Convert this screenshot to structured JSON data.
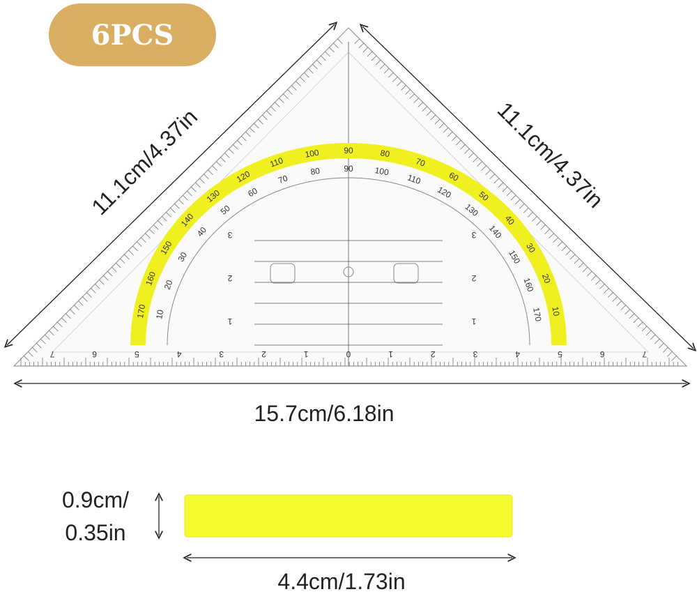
{
  "badge": {
    "label": "6PCS",
    "color": "#d9ae62"
  },
  "dimensions": {
    "left_side": "11.1cm/4.37in",
    "right_side": "11.1cm/4.37in",
    "base": "15.7cm/6.18in",
    "bar_height_line1": "0.9cm/",
    "bar_height_line2": "0.35in",
    "bar_length": "4.4cm/1.73in"
  },
  "protractor": {
    "outer_labels": [
      "10",
      "20",
      "30",
      "40",
      "50",
      "60",
      "70",
      "80",
      "90",
      "100",
      "110",
      "120",
      "130",
      "140",
      "150",
      "160",
      "170"
    ],
    "inner_labels": [
      "170",
      "160",
      "150",
      "140",
      "130",
      "120",
      "110",
      "100",
      "90",
      "80",
      "70",
      "60",
      "50",
      "40",
      "30",
      "20",
      "10"
    ],
    "cm_labels": [
      "7",
      "6",
      "5",
      "4",
      "3",
      "2",
      "1",
      "0",
      "1",
      "2",
      "3",
      "4",
      "5",
      "6",
      "7"
    ],
    "vertical_labels": [
      "1",
      "2",
      "3"
    ],
    "highlight_color": "#f0f020"
  },
  "bar": {
    "color": "#f4fb2e"
  }
}
